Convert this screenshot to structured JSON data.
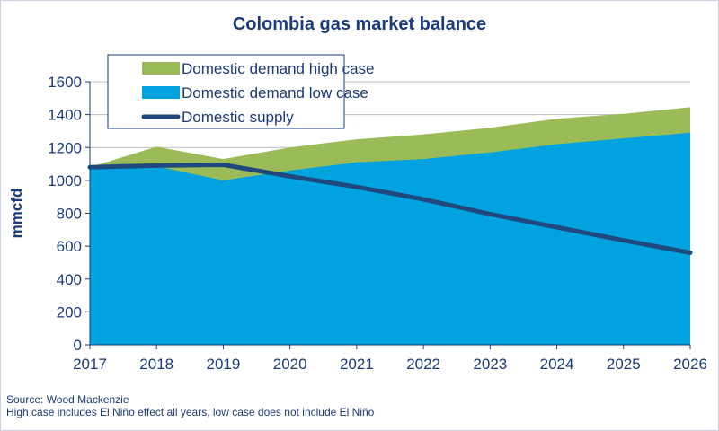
{
  "chart_data": {
    "type": "area",
    "title": "Colombia gas market balance",
    "ylabel": "mmcfd",
    "xlabel": "",
    "ylim": [
      0,
      1600
    ],
    "yticks": [
      0,
      200,
      400,
      600,
      800,
      1000,
      1200,
      1400,
      1600
    ],
    "x": [
      2017,
      2018,
      2019,
      2020,
      2021,
      2022,
      2023,
      2024,
      2025,
      2026
    ],
    "grid": true,
    "legend_placement": "top-left",
    "series": [
      {
        "name": "Domestic demand high case",
        "kind": "area",
        "color": "#9bbb59",
        "values": [
          1080,
          1205,
          1130,
          1200,
          1250,
          1280,
          1320,
          1375,
          1405,
          1445
        ]
      },
      {
        "name": "Domestic demand low case",
        "kind": "area",
        "color": "#00a3e0",
        "values": [
          1070,
          1085,
          1000,
          1060,
          1110,
          1130,
          1170,
          1220,
          1255,
          1290
        ]
      },
      {
        "name": "Domestic supply",
        "kind": "line",
        "color": "#1f497d",
        "values": [
          1080,
          1090,
          1095,
          1025,
          960,
          885,
          795,
          715,
          635,
          560
        ]
      }
    ]
  },
  "footer": {
    "source": "Source: Wood Mackenzie",
    "note": "High case includes El Niño effect all years, low case does not include El Niño"
  }
}
